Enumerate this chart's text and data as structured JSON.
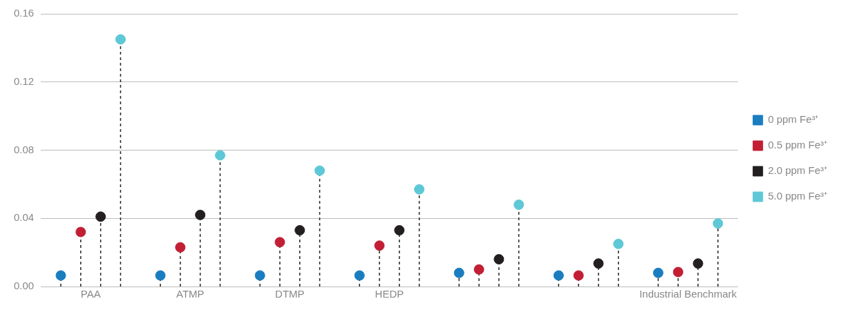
{
  "chart_data": {
    "type": "lollipop",
    "categories": [
      "PAA",
      "ATMP",
      "DTMP",
      "HEDP",
      null,
      null,
      "Industrial Benchmark"
    ],
    "series": [
      {
        "name": "0 ppm Fe³⁺",
        "color": "#1a7dc0",
        "values": [
          0.0065,
          0.0065,
          0.0065,
          0.0065,
          0.008,
          0.0065,
          0.008
        ]
      },
      {
        "name": "0.5 ppm Fe³⁺",
        "color": "#c21f35",
        "values": [
          0.032,
          0.023,
          0.026,
          0.024,
          0.01,
          0.0065,
          0.0085
        ]
      },
      {
        "name": "2.0 ppm Fe³⁺",
        "color": "#231f20",
        "values": [
          0.041,
          0.042,
          0.033,
          0.033,
          0.016,
          0.0135,
          0.0135
        ]
      },
      {
        "name": "5.0 ppm Fe³⁺",
        "color": "#5ec8d6",
        "values": [
          0.145,
          0.077,
          0.068,
          0.057,
          0.048,
          0.025,
          0.037
        ]
      }
    ],
    "ylim": [
      0,
      0.16
    ],
    "yticks": [
      {
        "value": 0,
        "label": "0.00"
      },
      0.04,
      0.08,
      0.12,
      0.16
    ],
    "grid": "y",
    "legend": "right",
    "marker": "circle",
    "line_style": "dashed"
  }
}
